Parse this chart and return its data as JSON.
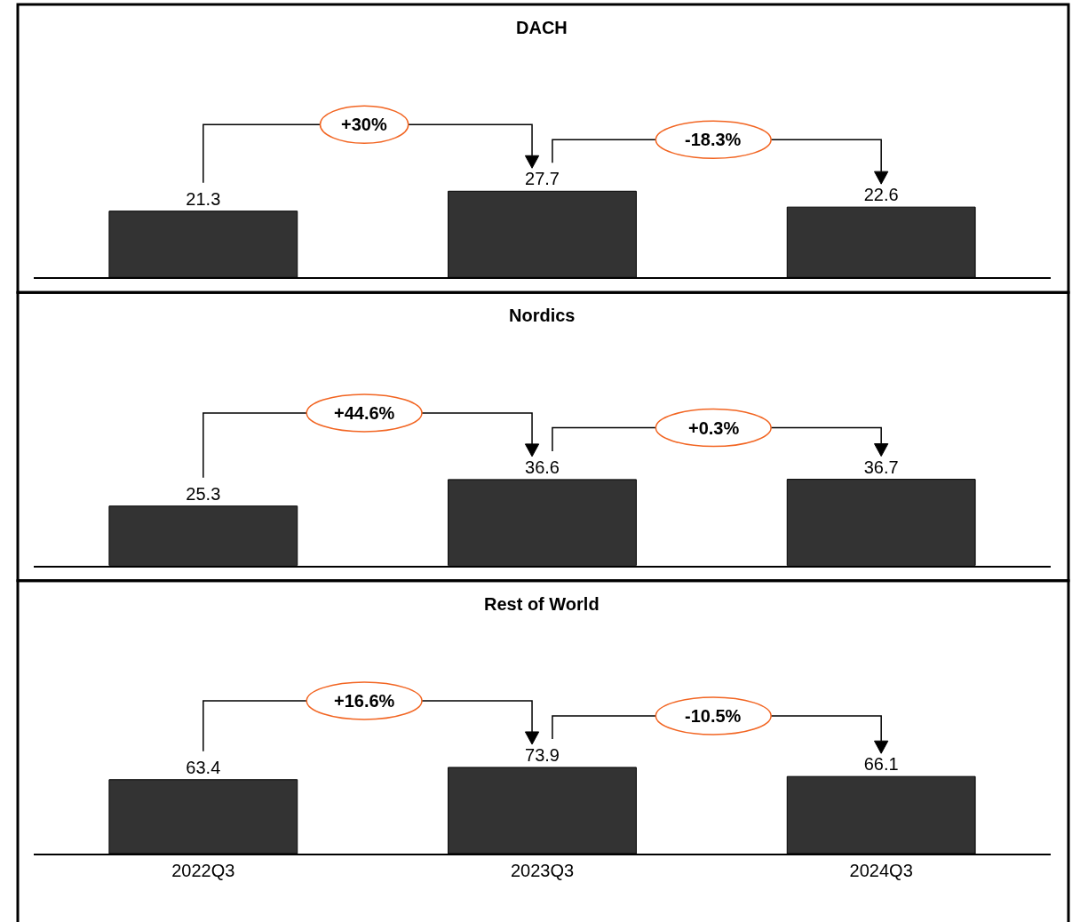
{
  "chart_data": [
    {
      "type": "bar",
      "title": "DACH",
      "categories": [
        null,
        null,
        null
      ],
      "values": [
        21.3,
        27.7,
        22.6
      ],
      "color": "#333333",
      "data_labels": true,
      "annotations": [
        "+30%",
        "-18.3%"
      ]
    },
    {
      "type": "bar",
      "title": "Nordics",
      "categories": [
        null,
        null,
        null
      ],
      "values": [
        25.3,
        36.6,
        36.7
      ],
      "color": "#333333",
      "data_labels": true,
      "annotations": [
        "+44.6%",
        "+0.3%"
      ]
    },
    {
      "type": "bar",
      "title": "Rest of World",
      "categories": [
        "2022Q3",
        "2023Q3",
        "2024Q3"
      ],
      "values": [
        63.4,
        73.9,
        66.1
      ],
      "color": "#333333",
      "data_labels": true,
      "annotations": [
        "+16.6%",
        "-10.5%"
      ],
      "tick_labels": "x"
    }
  ]
}
